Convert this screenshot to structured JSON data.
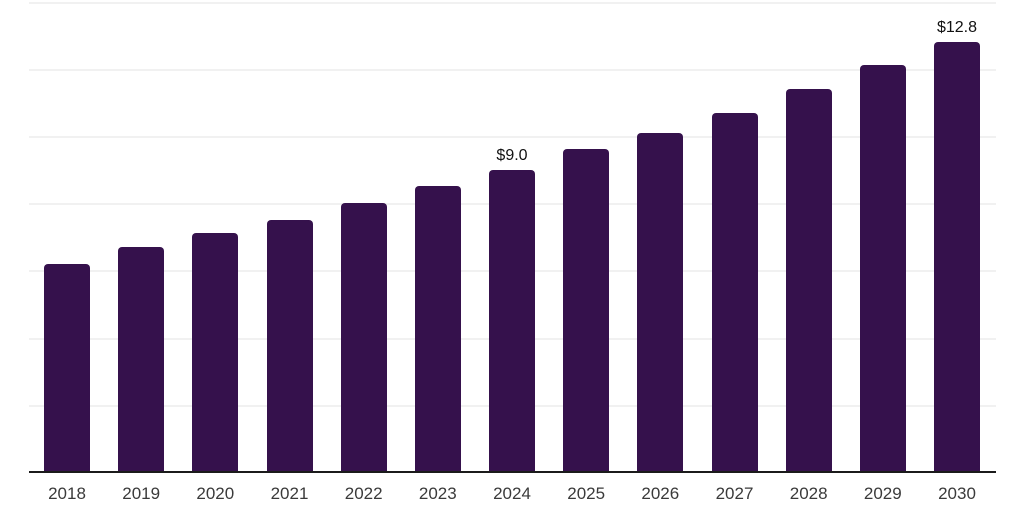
{
  "chart_data": {
    "type": "bar",
    "title": "",
    "xlabel": "",
    "ylabel": "",
    "categories": [
      "2018",
      "2019",
      "2020",
      "2021",
      "2022",
      "2023",
      "2024",
      "2025",
      "2026",
      "2027",
      "2028",
      "2029",
      "2030"
    ],
    "values": [
      6.2,
      6.7,
      7.1,
      7.5,
      8.0,
      8.5,
      9.0,
      9.6,
      10.1,
      10.7,
      11.4,
      12.1,
      12.8
    ],
    "value_labels": [
      "",
      "",
      "",
      "",
      "",
      "",
      "$9.0",
      "",
      "",
      "",
      "",
      "",
      "$12.8"
    ],
    "ylim": [
      0,
      14
    ],
    "grid_step": 2,
    "grid": "horizontal-only",
    "y_tick_labels": "none",
    "legend": "none"
  },
  "colors": {
    "background": "#ffffff",
    "bar": "#35114C",
    "gridline": "#f1f1f1",
    "axis_line": "#1b1b1b",
    "tick_label": "#3a3a3a",
    "value_label": "#111111"
  }
}
